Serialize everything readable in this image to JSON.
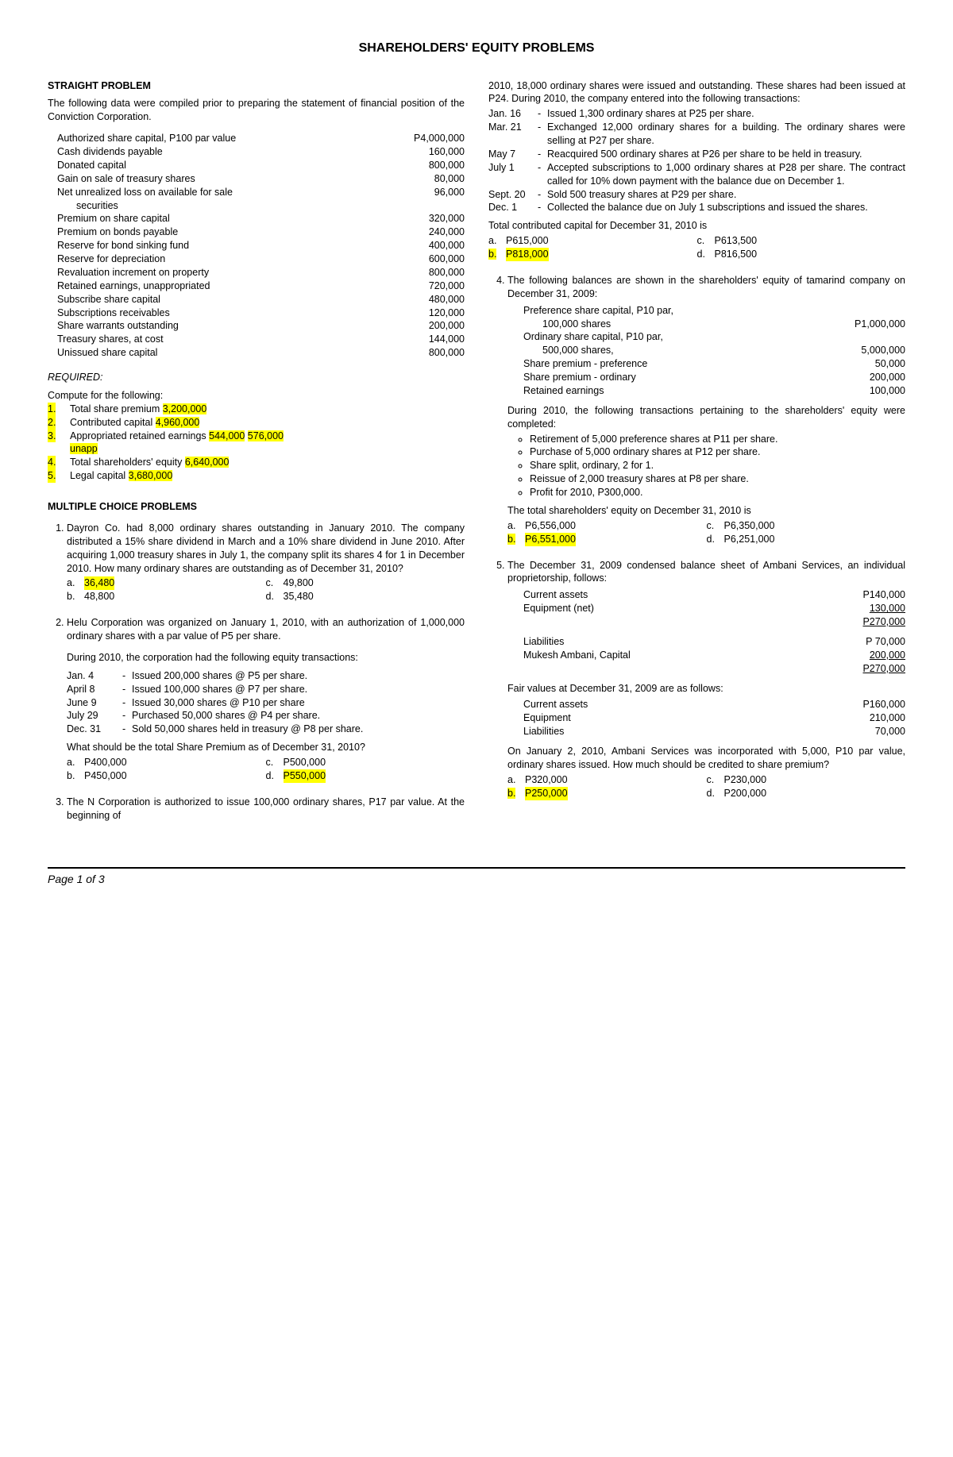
{
  "title": "SHAREHOLDERS' EQUITY PROBLEMS",
  "straight": {
    "head": "STRAIGHT PROBLEM",
    "intro": "The following data were compiled prior to preparing the statement of financial position of the Conviction Corporation.",
    "items": [
      {
        "l": "Authorized share capital, P100 par value",
        "v": "P4,000,000"
      },
      {
        "l": "Cash dividends payable",
        "v": "160,000"
      },
      {
        "l": "Donated capital",
        "v": "800,000"
      },
      {
        "l": "Gain on sale of treasury shares",
        "v": "80,000"
      },
      {
        "l": "Net unrealized loss on available for sale",
        "l2": "securities",
        "v": "96,000"
      },
      {
        "l": "Premium on share capital",
        "v": "320,000"
      },
      {
        "l": "Premium on bonds payable",
        "v": "240,000"
      },
      {
        "l": "Reserve for bond sinking fund",
        "v": "400,000"
      },
      {
        "l": "Reserve for depreciation",
        "v": "600,000"
      },
      {
        "l": "Revaluation increment on property",
        "v": "800,000"
      },
      {
        "l": "Retained earnings, unappropriated",
        "v": "720,000"
      },
      {
        "l": "Subscribe share capital",
        "v": "480,000"
      },
      {
        "l": "Subscriptions receivables",
        "v": "120,000"
      },
      {
        "l": "Share warrants outstanding",
        "v": "200,000"
      },
      {
        "l": "Treasury shares, at cost",
        "v": "144,000"
      },
      {
        "l": "Unissued share capital",
        "v": "800,000"
      }
    ],
    "required_head": "REQUIRED:",
    "required_intro": "Compute for the following:",
    "req": [
      {
        "t": "Total share premium",
        "a": "3,200,000"
      },
      {
        "t": "Contributed capital",
        "a": "4,960,000"
      },
      {
        "t": "Appropriated retained earnings",
        "a": "544,000",
        "a2": "576,000",
        "suffix": "unapp"
      },
      {
        "t": "Total shareholders' equity",
        "a": "6,640,000"
      },
      {
        "t": "Legal capital",
        "a": "3,680,000"
      }
    ]
  },
  "mcp_head": "MULTIPLE CHOICE PROBLEMS",
  "q1": {
    "text": "Dayron Co. had 8,000 ordinary shares outstanding in January 2010.  The company distributed a 15% share dividend in March and a 10% share dividend in June 2010.  After acquiring 1,000 treasury shares in July 1, the company split its shares 4 for 1 in December 2010.  How many ordinary shares are outstanding as of December 31, 2010?",
    "a": "36,480",
    "b": "48,800",
    "c": "49,800",
    "d": "35,480"
  },
  "q2": {
    "text": "Helu Corporation was organized on January 1, 2010, with an authorization of 1,000,000 ordinary shares with a par value of P5 per share.",
    "text2": "During 2010, the corporation had the following equity transactions:",
    "tx": [
      {
        "d": "Jan. 4",
        "t": "Issued 200,000 shares @ P5 per share."
      },
      {
        "d": "April 8",
        "t": "Issued 100,000 shares @ P7 per share."
      },
      {
        "d": "June 9",
        "t": "Issued 30,000 shares @ P10 per share"
      },
      {
        "d": "July 29",
        "t": "Purchased 50,000 shares @ P4 per share."
      },
      {
        "d": "Dec. 31",
        "t": "Sold 50,000 shares held in treasury @ P8 per share."
      }
    ],
    "ask": "What should be the total Share Premium as of December 31, 2010?",
    "a": "P400,000",
    "b": "P450,000",
    "c": "P500,000",
    "d": "P550,000"
  },
  "q3": {
    "text_top": "The N Corporation is authorized to issue 100,000 ordinary shares, P17 par value.  At the beginning of",
    "text_cont": "2010, 18,000 ordinary shares were issued and outstanding.  These shares had been issued at P24.  During 2010, the company entered into the following transactions:",
    "tx": [
      {
        "d": "Jan. 16",
        "t": "Issued 1,300 ordinary shares at P25 per share."
      },
      {
        "d": "Mar. 21",
        "t": "Exchanged 12,000 ordinary shares for a building.  The ordinary shares were selling at P27 per share."
      },
      {
        "d": "May 7",
        "t": "Reacquired 500 ordinary shares at P26 per share to be held in treasury."
      },
      {
        "d": "July 1",
        "t": "Accepted subscriptions to 1,000 ordinary shares at P28 per share.  The contract called for 10% down payment with the balance due on December 1."
      },
      {
        "d": "Sept. 20",
        "t": "Sold 500 treasury shares at P29 per share."
      },
      {
        "d": "Dec. 1",
        "t": "Collected the balance due on July 1 subscriptions and issued the shares."
      }
    ],
    "ask": "Total contributed capital for December 31, 2010 is",
    "a": "P615,000",
    "b": "P818,000",
    "c": "P613,500",
    "d": "P816,500"
  },
  "q4": {
    "text": "The following balances are shown in the shareholders' equity of tamarind company on December 31, 2009:",
    "bal": [
      {
        "l": "Preference share capital, P10 par,",
        "l2": "100,000 shares",
        "v": "P1,000,000"
      },
      {
        "l": "Ordinary share capital, P10 par,",
        "l2": "500,000 shares,",
        "v": "5,000,000"
      },
      {
        "l": "Share premium - preference",
        "v": "50,000"
      },
      {
        "l": "Share premium - ordinary",
        "v": "200,000"
      },
      {
        "l": "Retained earnings",
        "v": "100,000"
      }
    ],
    "text2": "During 2010, the following transactions pertaining to the shareholders' equity were completed:",
    "bullets": [
      "Retirement of 5,000 preference shares at P11 per share.",
      "Purchase of 5,000 ordinary shares at P12 per share.",
      "Share split, ordinary, 2 for 1.",
      "Reissue of 2,000 treasury shares at P8 per share.",
      "Profit for 2010, P300,000."
    ],
    "ask": "The total shareholders' equity on December 31, 2010 is",
    "a": "P6,556,000",
    "b": "P6,551,000",
    "c": "P6,350,000",
    "d": "P6,251,000"
  },
  "q5": {
    "text": "The December 31, 2009 condensed balance sheet of Ambani Services, an individual proprietorship, follows:",
    "bs1": [
      {
        "l": "Current assets",
        "v": "P140,000"
      },
      {
        "l": "Equipment (net)",
        "v": "130,000",
        "u": true
      },
      {
        "l": "",
        "v": "P270,000",
        "u": true
      }
    ],
    "bs2": [
      {
        "l": "Liabilities",
        "v": "P  70,000"
      },
      {
        "l": "Mukesh Ambani, Capital",
        "v": "200,000",
        "u": true
      },
      {
        "l": "",
        "v": "P270,000",
        "u": true
      }
    ],
    "fv_head": "Fair values at December 31, 2009 are as follows:",
    "fv": [
      {
        "l": "Current assets",
        "v": "P160,000"
      },
      {
        "l": "Equipment",
        "v": "210,000"
      },
      {
        "l": "Liabilities",
        "v": "70,000"
      }
    ],
    "text2": "On January 2, 2010, Ambani Services was incorporated with 5,000, P10 par value, ordinary shares issued.  How much should be credited to share premium?",
    "a": "P320,000",
    "b": "P250,000",
    "c": "P230,000",
    "d": "P200,000"
  },
  "footer": "Page 1 of 3"
}
